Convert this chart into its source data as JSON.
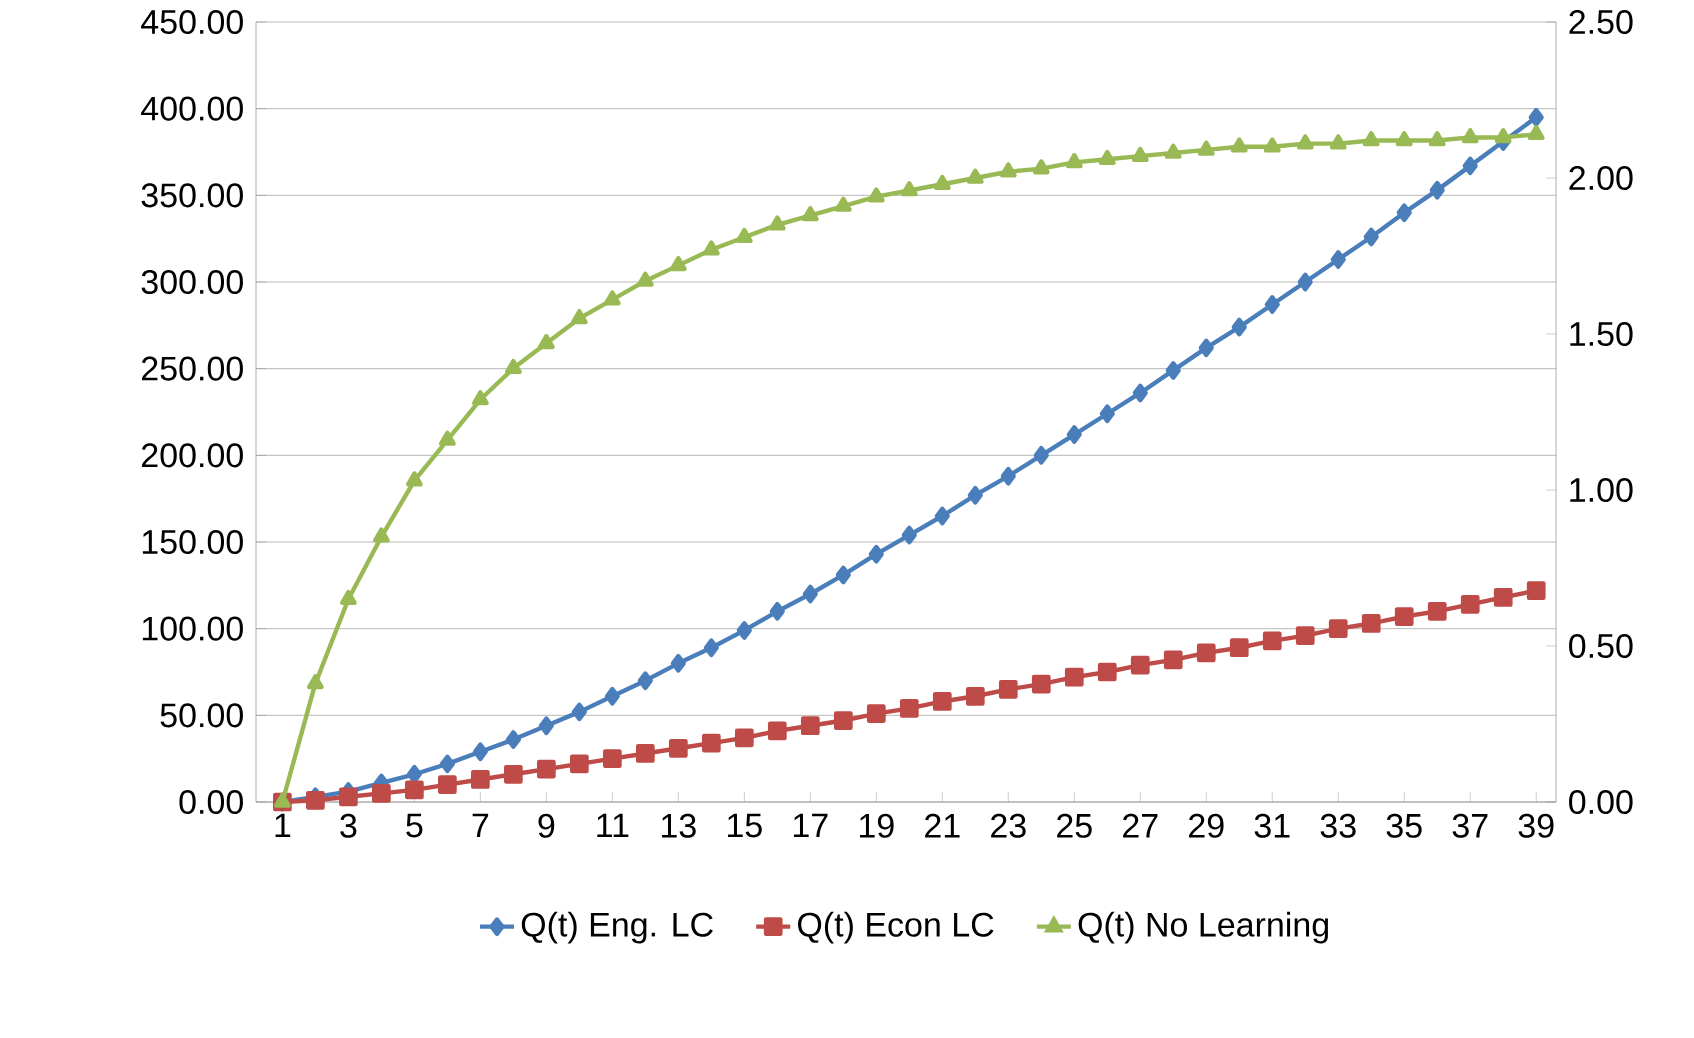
{
  "chart_data": {
    "type": "line",
    "categories": [
      "1",
      null,
      "3",
      null,
      "5",
      null,
      "7",
      null,
      "9",
      null,
      "11",
      null,
      "13",
      null,
      "15",
      null,
      "17",
      null,
      "19",
      null,
      "21",
      null,
      "23",
      null,
      "25",
      null,
      "27",
      null,
      "29",
      null,
      "31",
      null,
      "33",
      null,
      "35",
      null,
      "37",
      null,
      "39"
    ],
    "series": [
      {
        "name": "Q(t) Eng. LC",
        "color": "#4a7ebb",
        "marker": "diamond",
        "values": [
          0,
          3,
          6,
          11,
          16,
          22,
          29,
          36,
          44,
          52,
          61,
          70,
          80,
          89,
          99,
          110,
          120,
          131,
          143,
          154,
          165,
          177,
          188,
          200,
          212,
          224,
          236,
          249,
          262,
          274,
          287,
          300,
          313,
          326,
          340,
          353,
          367,
          381,
          395
        ]
      },
      {
        "name": "Q(t) Econ LC",
        "color": "#be4b48",
        "marker": "square",
        "values": [
          0,
          1,
          3,
          5,
          7,
          10,
          13,
          16,
          19,
          22,
          25,
          28,
          31,
          34,
          37,
          41,
          44,
          47,
          51,
          54,
          58,
          61,
          65,
          68,
          72,
          75,
          79,
          82,
          86,
          89,
          93,
          96,
          100,
          103,
          107,
          110,
          114,
          118,
          122
        ]
      },
      {
        "name": "Q(t) No Learning",
        "color": "#98b954",
        "marker": "triangle",
        "axis": "y2",
        "values": [
          0,
          0.38,
          0.65,
          0.85,
          1.03,
          1.16,
          1.29,
          1.39,
          1.47,
          1.55,
          1.61,
          1.67,
          1.72,
          1.77,
          1.81,
          1.85,
          1.88,
          1.91,
          1.94,
          1.96,
          1.98,
          2.0,
          2.02,
          2.03,
          2.05,
          2.06,
          2.07,
          2.08,
          2.09,
          2.1,
          2.1,
          2.11,
          2.11,
          2.12,
          2.12,
          2.12,
          2.13,
          2.13,
          2.14
        ]
      }
    ],
    "ylim": [
      0,
      450
    ],
    "yticks": [
      {
        "value": 0,
        "label": "0.00"
      },
      {
        "value": 50,
        "label": "50.00"
      },
      {
        "value": 100,
        "label": "100.00"
      },
      {
        "value": 150,
        "label": "150.00"
      },
      {
        "value": 200,
        "label": "200.00"
      },
      {
        "value": 250,
        "label": "250.00"
      },
      {
        "value": 300,
        "label": "300.00"
      },
      {
        "value": 350,
        "label": "350.00"
      },
      {
        "value": 400,
        "label": "400.00"
      },
      {
        "value": 450,
        "label": "450.00"
      }
    ],
    "y2lim": [
      0,
      2.5
    ],
    "y2ticks": [
      {
        "value": 0,
        "label": "0.00"
      },
      {
        "value": 0.5,
        "label": "0.50"
      },
      {
        "value": 1,
        "label": "1.00"
      },
      {
        "value": 1.5,
        "label": "1.50"
      },
      {
        "value": 2,
        "label": "2.00"
      },
      {
        "value": 2.5,
        "label": "2.50"
      }
    ],
    "grid": "y",
    "legend": "bottom",
    "line_style": "solid"
  }
}
